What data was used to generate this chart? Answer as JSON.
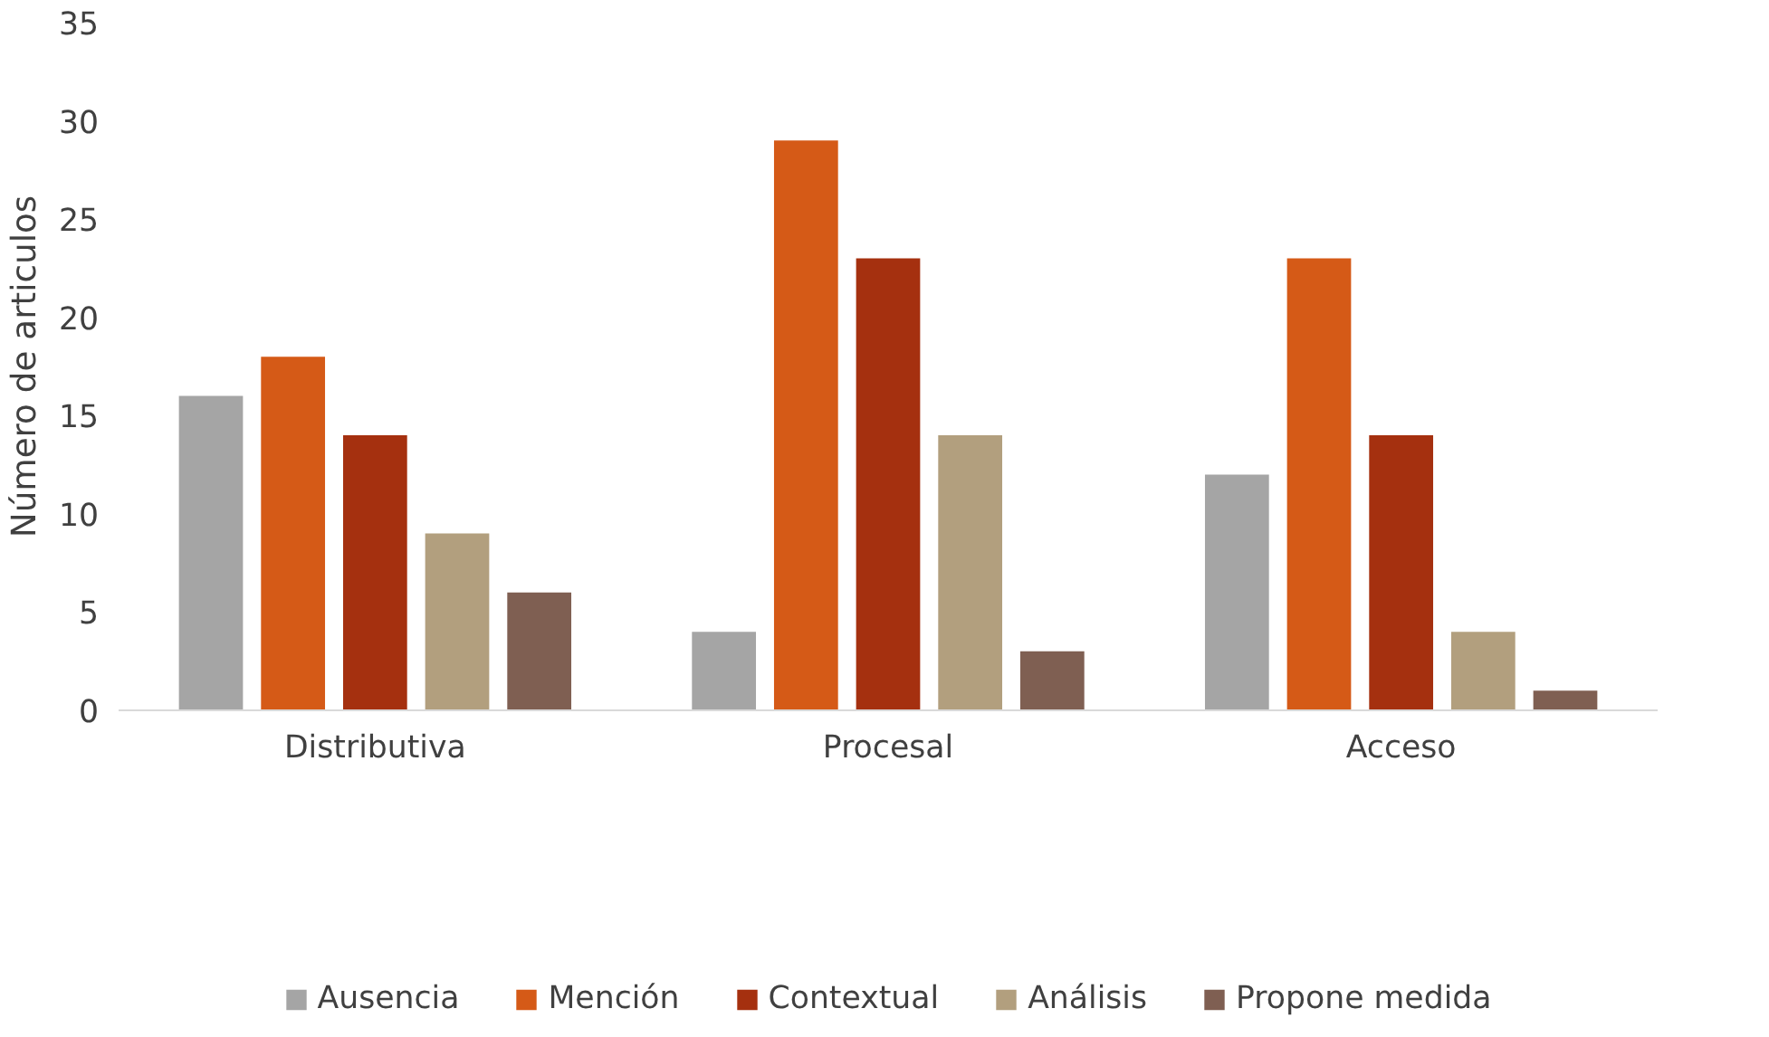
{
  "chart_data": {
    "type": "bar",
    "ylabel": "Número de articulos",
    "categories": [
      "Distributiva",
      "Procesal",
      "Acceso"
    ],
    "series": [
      {
        "name": "Ausencia",
        "color": "#a5a5a5",
        "values": [
          16,
          4,
          12
        ]
      },
      {
        "name": "Mención",
        "color": "#d55a17",
        "values": [
          18,
          29,
          23
        ]
      },
      {
        "name": "Contextual",
        "color": "#a5300f",
        "values": [
          14,
          23,
          14
        ]
      },
      {
        "name": "Análisis",
        "color": "#b29f7e",
        "values": [
          9,
          14,
          4
        ]
      },
      {
        "name": "Propone medida",
        "color": "#7f5f52",
        "values": [
          6,
          3,
          1
        ]
      }
    ],
    "ylim": [
      0,
      35
    ],
    "yticks": [
      0,
      5,
      10,
      15,
      20,
      25,
      30,
      35
    ],
    "grid": false,
    "legend": "bottom"
  }
}
